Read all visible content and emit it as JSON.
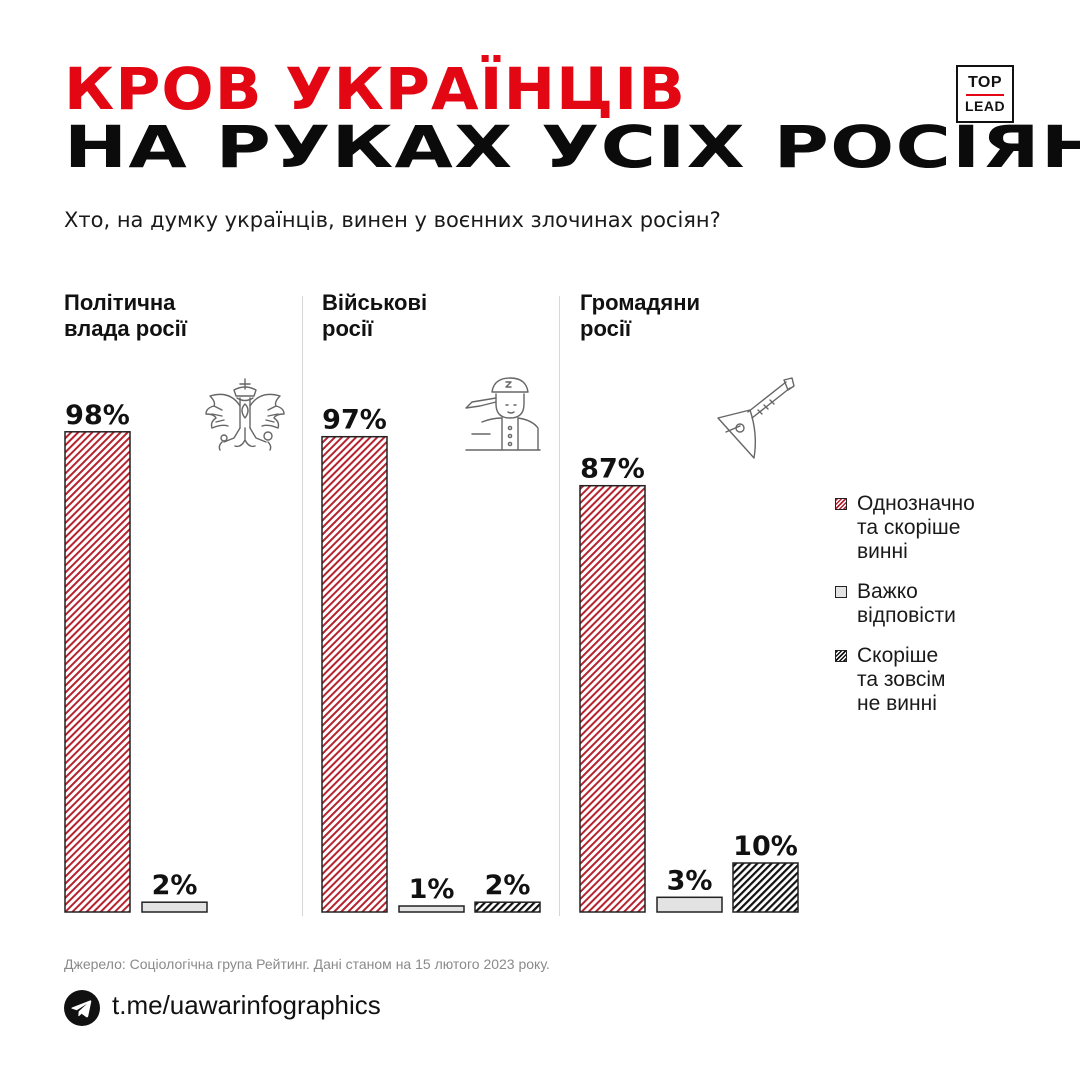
{
  "title": {
    "line1": "КРОВ УКРАЇНЦІВ",
    "line2": "НА РУКАХ УСІХ РОСІЯН"
  },
  "subtitle": "Хто, на думку українців, винен у воєнних злочинах росіян?",
  "logo": {
    "top": "TOP",
    "bottom": "LEAD"
  },
  "colors": {
    "accent": "#e30613",
    "guilty": "#b6232f",
    "hard": "#e3e3e3",
    "not_guilty": "#111111"
  },
  "icons": [
    "coat-of-arms-icon",
    "saluting-soldier-icon",
    "balalaika-icon",
    "telegram-icon"
  ],
  "chart_data": {
    "type": "bar",
    "title": "Хто, на думку українців, винен у воєнних злочинах росіян?",
    "categories": [
      "Політична влада росії",
      "Військові росії",
      "Громадяни росії"
    ],
    "series": [
      {
        "name": "Однозначно та скоріше винні",
        "values": [
          98,
          97,
          87
        ],
        "labels": [
          "98%",
          "97%",
          "87%"
        ]
      },
      {
        "name": "Важко відповісти",
        "values": [
          2,
          1,
          3
        ],
        "labels": [
          "2%",
          "1%",
          "3%"
        ]
      },
      {
        "name": "Скоріше та зовсім не винні",
        "values": [
          null,
          2,
          10
        ],
        "labels": [
          null,
          "2%",
          "10%"
        ]
      }
    ],
    "ylim": [
      0,
      100
    ],
    "xlabel": "",
    "ylabel": "",
    "grid": false,
    "legend": "right"
  },
  "categories_display": {
    "cat0": "Політична\nвлада росії",
    "cat1": "Військові\nросії",
    "cat2": "Громадяни\nросії"
  },
  "legend": {
    "guilty": "Однозначно\nта скоріше\nвинні",
    "hard": "Важко\nвідповісти",
    "not_guilty": "Скоріше\nта зовсім\nне винні"
  },
  "source": "Джерело: Соціологічна група Рейтинг. Дані станом на 15 лютого 2023 року.",
  "link": "t.me/uawarinfographics"
}
